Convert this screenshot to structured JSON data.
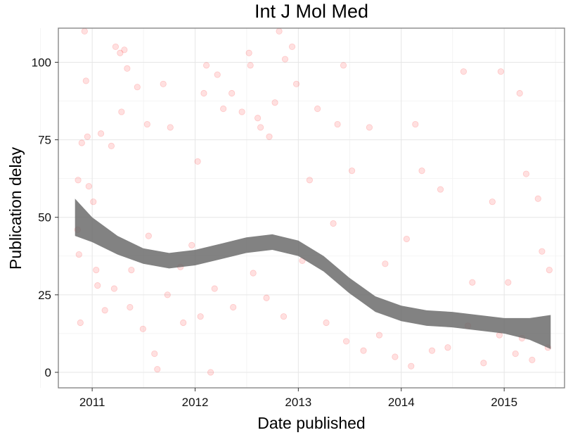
{
  "chart_data": {
    "type": "scatter",
    "title": "Int J Mol Med",
    "xlabel": "Date published",
    "ylabel": "Publication delay",
    "xlim": [
      "2010-09-03",
      "2015-08-03"
    ],
    "ylim": [
      -5,
      111
    ],
    "x_ticks": [
      "2011",
      "2012",
      "2013",
      "2014",
      "2015"
    ],
    "y_ticks": [
      "0",
      "25",
      "50",
      "75",
      "100"
    ],
    "grid": true,
    "legend": "none",
    "point_color": "#ff0000",
    "point_opacity": 0.12,
    "band_color": "#666666",
    "points": [
      {
        "x": "2010-11-10",
        "y": 46
      },
      {
        "x": "2010-11-12",
        "y": 62
      },
      {
        "x": "2010-11-15",
        "y": 38
      },
      {
        "x": "2010-11-20",
        "y": 16
      },
      {
        "x": "2010-11-25",
        "y": 74
      },
      {
        "x": "2010-12-05",
        "y": 110
      },
      {
        "x": "2010-12-10",
        "y": 94
      },
      {
        "x": "2010-12-15",
        "y": 76
      },
      {
        "x": "2010-12-20",
        "y": 60
      },
      {
        "x": "2011-01-05",
        "y": 55
      },
      {
        "x": "2011-01-20",
        "y": 28
      },
      {
        "x": "2011-02-01",
        "y": 77
      },
      {
        "x": "2011-02-15",
        "y": 20
      },
      {
        "x": "2011-03-10",
        "y": 73
      },
      {
        "x": "2011-03-25",
        "y": 105
      },
      {
        "x": "2011-04-10",
        "y": 103
      },
      {
        "x": "2011-04-25",
        "y": 104
      },
      {
        "x": "2011-04-15",
        "y": 84
      },
      {
        "x": "2011-05-05",
        "y": 98
      },
      {
        "x": "2011-05-20",
        "y": 33
      },
      {
        "x": "2011-06-10",
        "y": 92
      },
      {
        "x": "2011-06-30",
        "y": 14
      },
      {
        "x": "2011-07-15",
        "y": 80
      },
      {
        "x": "2011-08-10",
        "y": 6
      },
      {
        "x": "2011-08-20",
        "y": 1
      },
      {
        "x": "2011-09-10",
        "y": 93
      },
      {
        "x": "2011-10-05",
        "y": 79
      },
      {
        "x": "2011-11-20",
        "y": 16
      },
      {
        "x": "2011-12-20",
        "y": 41
      },
      {
        "x": "2012-01-10",
        "y": 68
      },
      {
        "x": "2012-02-01",
        "y": 90
      },
      {
        "x": "2012-02-10",
        "y": 99
      },
      {
        "x": "2012-02-25",
        "y": 0
      },
      {
        "x": "2012-03-20",
        "y": 96
      },
      {
        "x": "2012-04-10",
        "y": 85
      },
      {
        "x": "2012-05-10",
        "y": 90
      },
      {
        "x": "2012-06-15",
        "y": 84
      },
      {
        "x": "2012-07-10",
        "y": 103
      },
      {
        "x": "2012-07-15",
        "y": 99
      },
      {
        "x": "2012-08-10",
        "y": 82
      },
      {
        "x": "2012-08-20",
        "y": 79
      },
      {
        "x": "2012-09-20",
        "y": 76
      },
      {
        "x": "2012-10-10",
        "y": 87
      },
      {
        "x": "2012-10-25",
        "y": 110
      },
      {
        "x": "2012-11-15",
        "y": 101
      },
      {
        "x": "2012-12-10",
        "y": 105
      },
      {
        "x": "2012-12-25",
        "y": 93
      },
      {
        "x": "2013-03-10",
        "y": 85
      },
      {
        "x": "2013-06-10",
        "y": 99
      },
      {
        "x": "2013-05-20",
        "y": 80
      },
      {
        "x": "2013-09-10",
        "y": 79
      },
      {
        "x": "2014-02-20",
        "y": 80
      },
      {
        "x": "2014-08-10",
        "y": 97
      },
      {
        "x": "2014-12-20",
        "y": 97
      },
      {
        "x": "2015-02-25",
        "y": 90
      },
      {
        "x": "2015-03-20",
        "y": 64
      },
      {
        "x": "2015-05-01",
        "y": 56
      },
      {
        "x": "2011-01-15",
        "y": 33
      },
      {
        "x": "2011-03-20",
        "y": 27
      },
      {
        "x": "2011-05-15",
        "y": 21
      },
      {
        "x": "2011-07-20",
        "y": 44
      },
      {
        "x": "2011-09-25",
        "y": 25
      },
      {
        "x": "2011-11-10",
        "y": 34
      },
      {
        "x": "2012-01-20",
        "y": 18
      },
      {
        "x": "2012-03-10",
        "y": 27
      },
      {
        "x": "2012-05-15",
        "y": 21
      },
      {
        "x": "2012-07-25",
        "y": 32
      },
      {
        "x": "2012-09-10",
        "y": 24
      },
      {
        "x": "2012-11-10",
        "y": 18
      },
      {
        "x": "2013-01-15",
        "y": 36
      },
      {
        "x": "2013-04-10",
        "y": 16
      },
      {
        "x": "2013-06-20",
        "y": 10
      },
      {
        "x": "2013-08-20",
        "y": 7
      },
      {
        "x": "2013-10-15",
        "y": 12
      },
      {
        "x": "2013-12-10",
        "y": 5
      },
      {
        "x": "2014-02-05",
        "y": 2
      },
      {
        "x": "2014-04-20",
        "y": 7
      },
      {
        "x": "2014-06-15",
        "y": 8
      },
      {
        "x": "2014-08-25",
        "y": 15
      },
      {
        "x": "2014-10-20",
        "y": 3
      },
      {
        "x": "2014-12-15",
        "y": 12
      },
      {
        "x": "2015-02-10",
        "y": 6
      },
      {
        "x": "2015-04-10",
        "y": 4
      },
      {
        "x": "2015-06-10",
        "y": 33
      },
      {
        "x": "2015-06-05",
        "y": 8
      },
      {
        "x": "2013-02-10",
        "y": 62
      },
      {
        "x": "2013-05-05",
        "y": 48
      },
      {
        "x": "2013-07-10",
        "y": 65
      },
      {
        "x": "2013-11-05",
        "y": 35
      },
      {
        "x": "2014-01-20",
        "y": 43
      },
      {
        "x": "2014-03-15",
        "y": 65
      },
      {
        "x": "2014-05-20",
        "y": 59
      },
      {
        "x": "2014-09-10",
        "y": 29
      },
      {
        "x": "2014-11-20",
        "y": 55
      },
      {
        "x": "2015-01-15",
        "y": 29
      },
      {
        "x": "2015-03-05",
        "y": 11
      },
      {
        "x": "2015-05-15",
        "y": 39
      }
    ],
    "trend": [
      {
        "x": "2010-11-01",
        "y": 50,
        "low": 44,
        "high": 56
      },
      {
        "x": "2011-01-01",
        "y": 46,
        "low": 42,
        "high": 50
      },
      {
        "x": "2011-04-01",
        "y": 41,
        "low": 38,
        "high": 44
      },
      {
        "x": "2011-07-01",
        "y": 37.5,
        "low": 35,
        "high": 40
      },
      {
        "x": "2011-10-01",
        "y": 36,
        "low": 33.5,
        "high": 38.5
      },
      {
        "x": "2012-01-01",
        "y": 37,
        "low": 34.5,
        "high": 39.5
      },
      {
        "x": "2012-04-01",
        "y": 39,
        "low": 36.5,
        "high": 41.5
      },
      {
        "x": "2012-07-01",
        "y": 41,
        "low": 38.5,
        "high": 43.5
      },
      {
        "x": "2012-10-01",
        "y": 42,
        "low": 39.5,
        "high": 44.5
      },
      {
        "x": "2013-01-01",
        "y": 40,
        "low": 37.5,
        "high": 42.5
      },
      {
        "x": "2013-04-01",
        "y": 35,
        "low": 32.5,
        "high": 37.5
      },
      {
        "x": "2013-07-01",
        "y": 28,
        "low": 25.5,
        "high": 30.5
      },
      {
        "x": "2013-10-01",
        "y": 22,
        "low": 19.5,
        "high": 24.5
      },
      {
        "x": "2014-01-01",
        "y": 19,
        "low": 16.5,
        "high": 21.5
      },
      {
        "x": "2014-04-01",
        "y": 17.5,
        "low": 15,
        "high": 20
      },
      {
        "x": "2014-07-01",
        "y": 17,
        "low": 14.5,
        "high": 19.5
      },
      {
        "x": "2014-10-01",
        "y": 16,
        "low": 13.5,
        "high": 18.5
      },
      {
        "x": "2015-01-01",
        "y": 15,
        "low": 12.5,
        "high": 17.5
      },
      {
        "x": "2015-04-01",
        "y": 14,
        "low": 10.5,
        "high": 17.5
      },
      {
        "x": "2015-06-15",
        "y": 13,
        "low": 7.5,
        "high": 18.5
      }
    ]
  }
}
